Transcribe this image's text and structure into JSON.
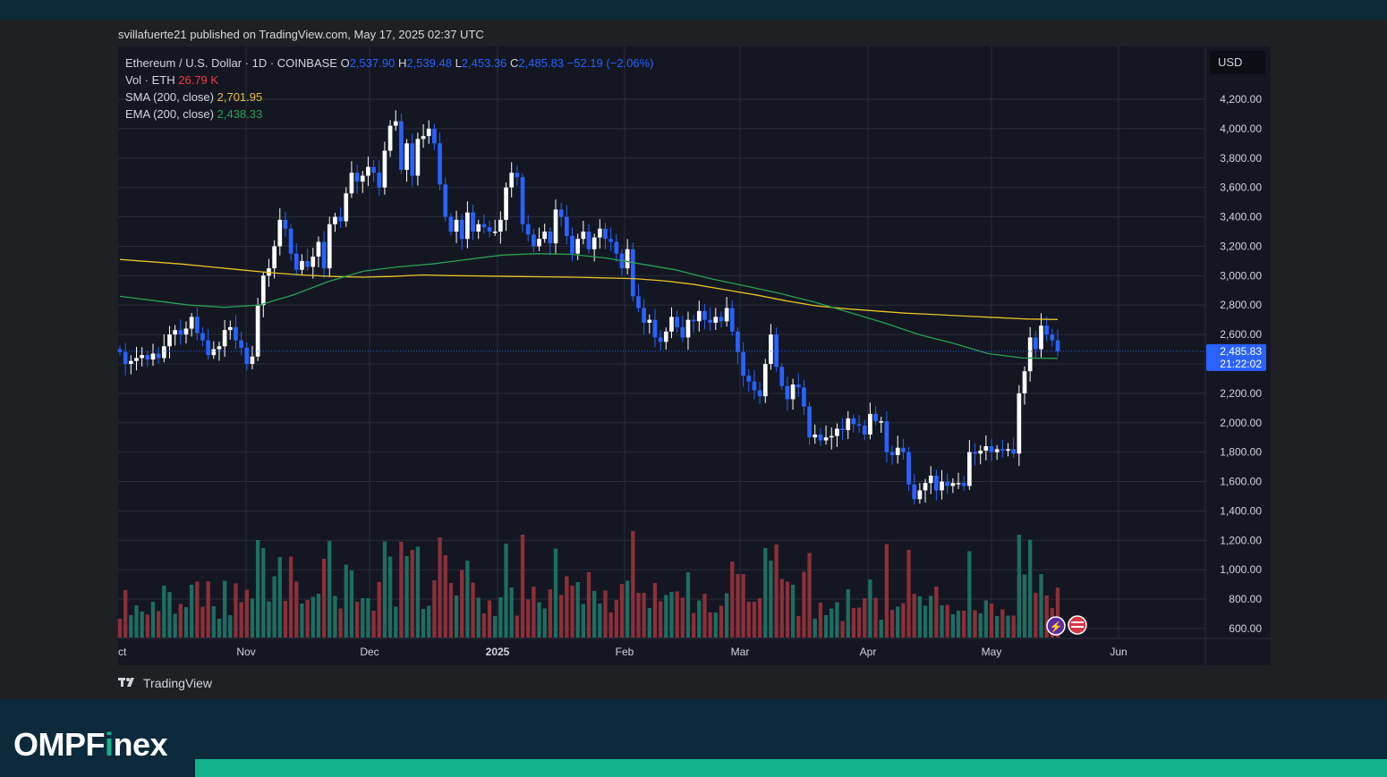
{
  "header": {
    "published": "svillafuerte21 published on TradingView.com, May 17, 2025 02:37 UTC"
  },
  "legend": {
    "symbol": "Ethereum / U.S. Dollar · 1D · COINBASE",
    "o_label": "O",
    "o_value": "2,537.90",
    "h_label": "H",
    "h_value": "2,539.48",
    "l_label": "L",
    "l_value": "2,453.36",
    "c_label": "C",
    "c_value": "2,485.83",
    "change": "−52.19 (−2.06%)",
    "vol_label": "Vol · ETH",
    "vol_value": "26.79 K",
    "sma_label": "SMA (200, close)",
    "sma_value": "2,701.95",
    "ema_label": "EMA (200, close)",
    "ema_value": "2,438.33"
  },
  "currency": "USD",
  "price_tag": {
    "price": "2,485.83",
    "countdown": "21:22:02"
  },
  "footer_brand": "TradingView",
  "brand": {
    "logo_a": "OMPF",
    "logo_b": "i",
    "logo_c": "nex"
  },
  "colors": {
    "up": "#ffffff",
    "down": "#2962ff",
    "sma": "#e6c229",
    "ema": "#2e9e52",
    "vol_up": "#1d6e61",
    "vol_down": "#8c2f3a",
    "brand_green": "#12b28c"
  },
  "chart_data": {
    "type": "candlestick",
    "title": "Ethereum / U.S. Dollar · 1D · COINBASE",
    "x_tick_labels": [
      "ct",
      "Nov",
      "Dec",
      "2025",
      "Feb",
      "Mar",
      "Apr",
      "May",
      "Jun"
    ],
    "y_tick_labels": [
      "600.00",
      "800.00",
      "1,000.00",
      "1,200.00",
      "1,400.00",
      "1,600.00",
      "1,800.00",
      "2,000.00",
      "2,200.00",
      "2,400.00",
      "2,600.00",
      "2,800.00",
      "3,000.00",
      "3,200.00",
      "3,400.00",
      "3,600.00",
      "3,800.00",
      "4,000.00",
      "4,200.00"
    ],
    "ylim": [
      600,
      4200
    ],
    "close_series": [
      2480,
      2400,
      2420,
      2440,
      2460,
      2430,
      2470,
      2440,
      2520,
      2600,
      2630,
      2600,
      2640,
      2720,
      2610,
      2560,
      2460,
      2500,
      2520,
      2630,
      2650,
      2560,
      2510,
      2400,
      2450,
      2800,
      3000,
      3050,
      3200,
      3380,
      3320,
      3150,
      3040,
      3100,
      3060,
      3130,
      3230,
      3050,
      3350,
      3400,
      3370,
      3560,
      3700,
      3640,
      3680,
      3740,
      3700,
      3600,
      3850,
      4020,
      4050,
      3720,
      3900,
      3680,
      3930,
      3950,
      4000,
      3900,
      3620,
      3400,
      3300,
      3380,
      3250,
      3430,
      3300,
      3350,
      3330,
      3300,
      3300,
      3380,
      3600,
      3700,
      3670,
      3350,
      3280,
      3200,
      3250,
      3300,
      3220,
      3450,
      3400,
      3270,
      3150,
      3250,
      3300,
      3180,
      3260,
      3320,
      3250,
      3230,
      3150,
      3050,
      3180,
      2860,
      2780,
      2680,
      2700,
      2580,
      2550,
      2620,
      2720,
      2650,
      2580,
      2700,
      2690,
      2760,
      2700,
      2680,
      2720,
      2690,
      2780,
      2620,
      2480,
      2320,
      2280,
      2220,
      2180,
      2400,
      2600,
      2380,
      2250,
      2160,
      2260,
      2240,
      2110,
      1900,
      1920,
      1880,
      1900,
      1910,
      1960,
      1950,
      2030,
      1990,
      1980,
      1920,
      2060,
      2010,
      2010,
      1800,
      1780,
      1830,
      1800,
      1580,
      1480,
      1540,
      1590,
      1640,
      1540,
      1600,
      1570,
      1590,
      1590,
      1570,
      1800,
      1790,
      1810,
      1840,
      1800,
      1820,
      1810,
      1820,
      1790,
      2200,
      2350,
      2580,
      2500,
      2660,
      2600,
      2560,
      2486
    ],
    "series": [
      {
        "name": "SMA (200, close)",
        "values": [
          3110,
          3095,
          3080,
          3060,
          3040,
          3020,
          3005,
          2995,
          2990,
          2995,
          3005,
          3000,
          2998,
          2995,
          2992,
          2990,
          2985,
          2980,
          2965,
          2940,
          2905,
          2870,
          2830,
          2795,
          2775,
          2760,
          2745,
          2735,
          2725,
          2715,
          2705,
          2702
        ]
      },
      {
        "name": "EMA (200, close)",
        "values": [
          2860,
          2830,
          2800,
          2785,
          2800,
          2870,
          2960,
          3030,
          3060,
          3080,
          3110,
          3140,
          3150,
          3145,
          3120,
          3080,
          3040,
          2980,
          2930,
          2880,
          2820,
          2750,
          2680,
          2600,
          2540,
          2470,
          2440,
          2438
        ]
      }
    ]
  }
}
